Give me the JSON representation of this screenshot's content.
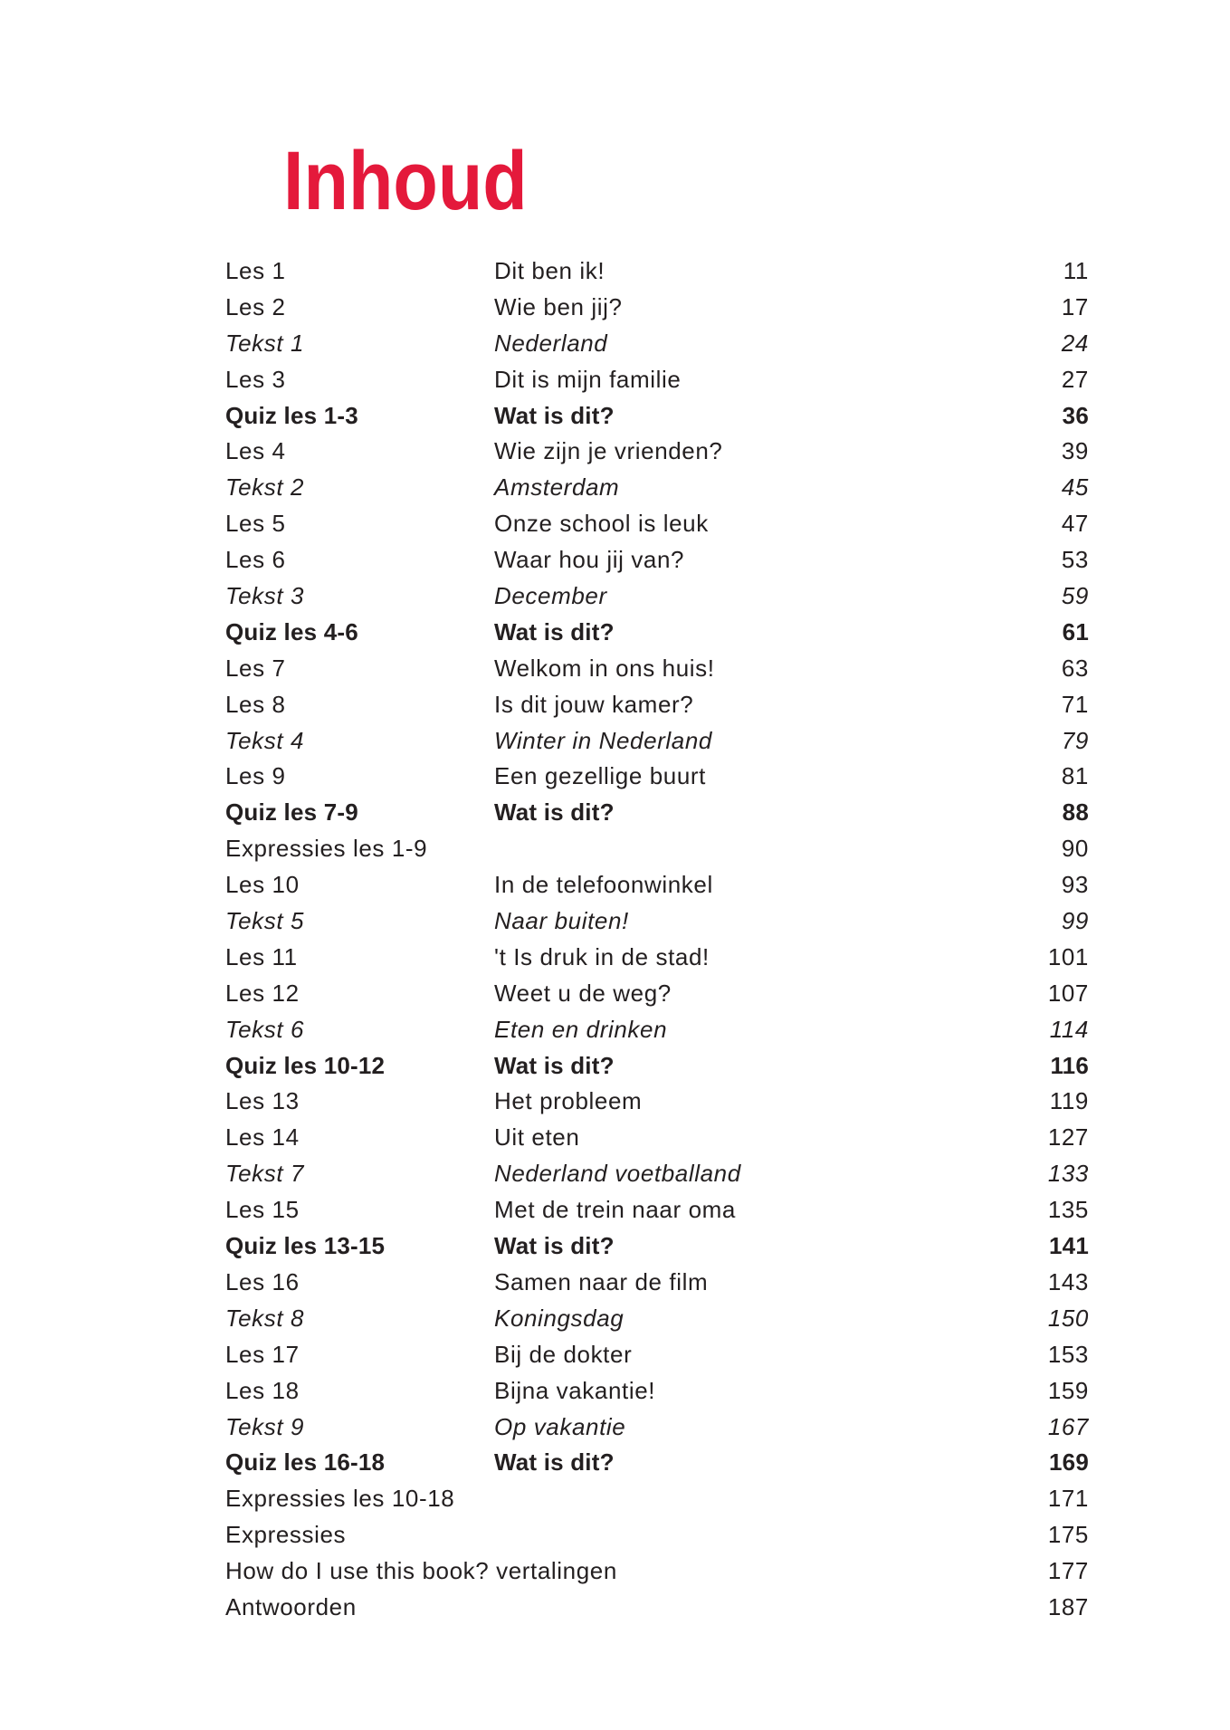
{
  "title": "Inhoud",
  "colors": {
    "title": "#e4193b",
    "text": "#231f20"
  },
  "entries": [
    {
      "label": "Les 1",
      "title": "Dit ben ik!",
      "page": "11",
      "style": "normal"
    },
    {
      "label": "Les 2",
      "title": "Wie ben jij?",
      "page": "17",
      "style": "normal"
    },
    {
      "label": "Tekst 1",
      "title": "Nederland",
      "page": "24",
      "style": "italic"
    },
    {
      "label": "Les 3",
      "title": "Dit is mijn familie",
      "page": "27",
      "style": "normal"
    },
    {
      "label": "Quiz les 1-3",
      "title": "Wat is dit?",
      "page": "36",
      "style": "bold"
    },
    {
      "label": "Les 4",
      "title": "Wie zijn je vrienden?",
      "page": "39",
      "style": "normal"
    },
    {
      "label": "Tekst 2",
      "title": "Amsterdam",
      "page": "45",
      "style": "italic"
    },
    {
      "label": "Les 5",
      "title": "Onze school is leuk",
      "page": "47",
      "style": "normal"
    },
    {
      "label": "Les 6",
      "title": "Waar hou jij van?",
      "page": "53",
      "style": "normal"
    },
    {
      "label": "Tekst 3",
      "title": "December",
      "page": "59",
      "style": "italic"
    },
    {
      "label": "Quiz les 4-6",
      "title": "Wat is dit?",
      "page": "61",
      "style": "bold"
    },
    {
      "label": "Les 7",
      "title": "Welkom in ons huis!",
      "page": "63",
      "style": "normal"
    },
    {
      "label": "Les 8",
      "title": "Is dit jouw kamer?",
      "page": "71",
      "style": "normal"
    },
    {
      "label": "Tekst 4",
      "title": "Winter in Nederland",
      "page": "79",
      "style": "italic"
    },
    {
      "label": "Les 9",
      "title": "Een gezellige buurt",
      "page": "81",
      "style": "normal"
    },
    {
      "label": "Quiz les 7-9",
      "title": "Wat is dit?",
      "page": "88",
      "style": "bold"
    },
    {
      "label": "Expressies les 1-9",
      "title": "",
      "page": "90",
      "style": "normal"
    },
    {
      "label": "Les 10",
      "title": "In de telefoonwinkel",
      "page": "93",
      "style": "normal"
    },
    {
      "label": "Tekst 5",
      "title": "Naar buiten!",
      "page": "99",
      "style": "italic"
    },
    {
      "label": "Les 11",
      "title": "'t Is druk in de stad!",
      "page": "101",
      "style": "normal"
    },
    {
      "label": "Les 12",
      "title": "Weet u de weg?",
      "page": "107",
      "style": "normal"
    },
    {
      "label": "Tekst 6",
      "title": "Eten en drinken",
      "page": "114",
      "style": "italic"
    },
    {
      "label": "Quiz les 10-12",
      "title": "Wat is dit?",
      "page": "116",
      "style": "bold"
    },
    {
      "label": "Les 13",
      "title": "Het probleem",
      "page": "119",
      "style": "normal"
    },
    {
      "label": "Les 14",
      "title": "Uit eten",
      "page": "127",
      "style": "normal"
    },
    {
      "label": "Tekst 7",
      "title": "Nederland voetballand",
      "page": "133",
      "style": "italic"
    },
    {
      "label": "Les 15",
      "title": "Met de trein naar oma",
      "page": "135",
      "style": "normal"
    },
    {
      "label": "Quiz les 13-15",
      "title": "Wat is dit?",
      "page": "141",
      "style": "bold"
    },
    {
      "label": "Les 16",
      "title": "Samen naar de film",
      "page": "143",
      "style": "normal"
    },
    {
      "label": "Tekst 8",
      "title": "Koningsdag",
      "page": "150",
      "style": "italic"
    },
    {
      "label": "Les 17",
      "title": "Bij de dokter",
      "page": "153",
      "style": "normal"
    },
    {
      "label": "Les 18",
      "title": "Bijna vakantie!",
      "page": "159",
      "style": "normal"
    },
    {
      "label": "Tekst 9",
      "title": "Op vakantie",
      "page": "167",
      "style": "italic"
    },
    {
      "label": "Quiz les 16-18",
      "title": "Wat is dit?",
      "page": "169",
      "style": "bold"
    },
    {
      "label": "Expressies les 10-18",
      "title": "",
      "page": "171",
      "style": "normal"
    },
    {
      "label": "Expressies",
      "title": "",
      "page": "175",
      "style": "normal"
    },
    {
      "label": "How do I use this book? vertalingen",
      "title": "",
      "page": "177",
      "style": "normal"
    },
    {
      "label": "Antwoorden",
      "title": "",
      "page": "187",
      "style": "normal"
    }
  ]
}
